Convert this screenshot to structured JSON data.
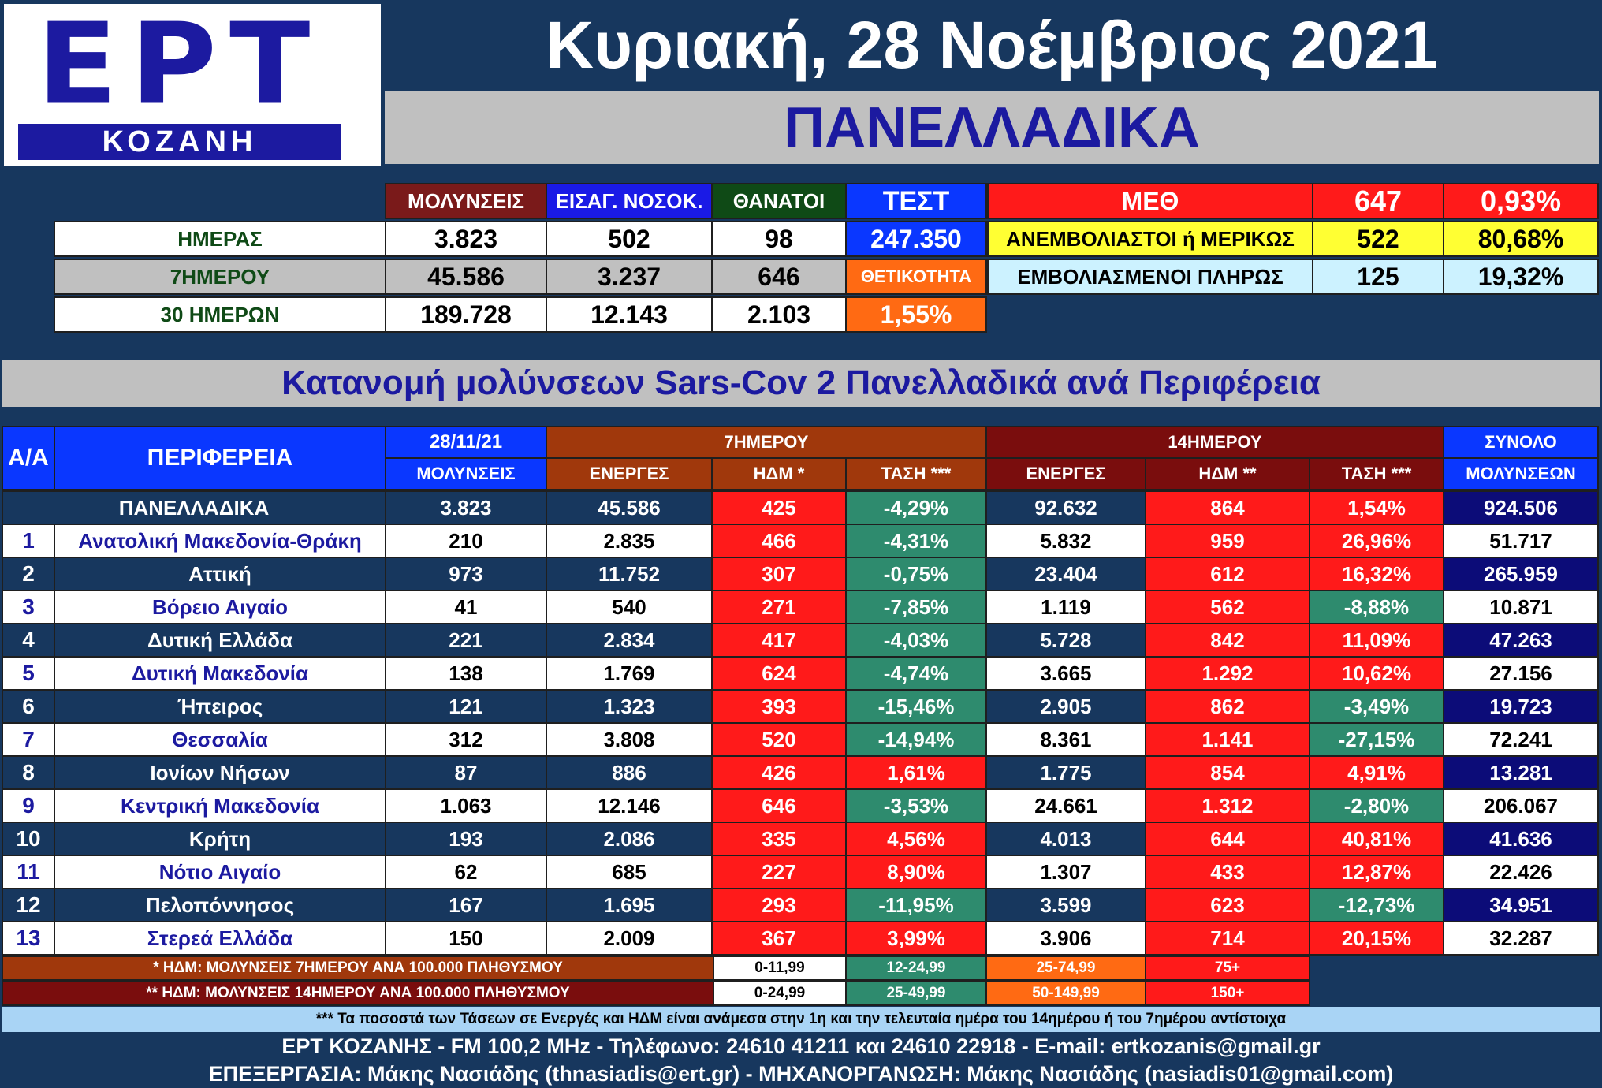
{
  "header": {
    "logo_main": "EPT",
    "logo_sub": "ΚΟΖΑΝΗ",
    "date": "Κυριακή, 28 Νοέμβριος 2021",
    "scope": "ΠΑΝΕΛΛΑΔΙΚΑ"
  },
  "summary": {
    "col_headers": [
      "ΜΟΛΥΝΣΕΙΣ",
      "ΕΙΣΑΓ. ΝΟΣΟΚ.",
      "ΘΑΝΑΤΟΙ",
      "ΤΕΣΤ"
    ],
    "rows": [
      {
        "label": "ΗΜΕΡΑΣ",
        "infections": "3.823",
        "hospital": "502",
        "deaths": "98"
      },
      {
        "label": "7ΗΜΕΡΟΥ",
        "infections": "45.586",
        "hospital": "3.237",
        "deaths": "646"
      },
      {
        "label": "30 ΗΜΕΡΩΝ",
        "infections": "189.728",
        "hospital": "12.143",
        "deaths": "2.103"
      }
    ],
    "tests_value": "247.350",
    "positivity_label": "ΘΕΤΙΚΟΤΗΤΑ",
    "positivity_value": "1,55%",
    "icu": {
      "label": "ΜΕΘ",
      "count": "647",
      "pct": "0,93%",
      "unvaccinated_label": "ΑΝΕΜΒΟΛΙΑΣΤΟΙ ή ΜΕΡΙΚΩΣ",
      "unvaccinated_count": "522",
      "unvaccinated_pct": "80,68%",
      "vaccinated_label": "ΕΜΒΟΛΙΑΣΜΕΝΟΙ ΠΛΗΡΩΣ",
      "vaccinated_count": "125",
      "vaccinated_pct": "19,32%"
    }
  },
  "section_title": "Κατανομή μολύνσεων Sars-Cov 2 Πανελλαδικά ανά Περιφέρεια",
  "table_headers": {
    "aa": "Α/Α",
    "region": "ΠΕΡΙΦΕΡΕΙΑ",
    "date": "28/11/21",
    "infections": "ΜΟΛΥΝΣΕΙΣ",
    "group7": "7ΗΜΕΡΟΥ",
    "group14": "14ΗΜΕΡΟΥ",
    "total_top": "ΣΥΝΟΛΟ",
    "total_bottom": "ΜΟΛΥΝΣΕΩΝ",
    "active7": "ΕΝΕΡΓΕΣ",
    "hdm7": "ΗΔΜ *",
    "trend7": "ΤΑΣΗ ***",
    "active14": "ΕΝΕΡΓΕΣ",
    "hdm14": "ΗΔΜ **",
    "trend14": "ΤΑΣΗ ***"
  },
  "total_row": {
    "region": "ΠΑΝΕΛΛΑΔΙΚΑ",
    "infections": "3.823",
    "active7": "45.586",
    "hdm7": "425",
    "trend7": "-4,29%",
    "active14": "92.632",
    "hdm14": "864",
    "trend14": "1,54%",
    "total": "924.506"
  },
  "regions": [
    {
      "aa": "1",
      "region": "Ανατολική Μακεδονία-Θράκη",
      "infections": "210",
      "active7": "2.835",
      "hdm7": "466",
      "trend7": "-4,31%",
      "active14": "5.832",
      "hdm14": "959",
      "trend14": "26,96%",
      "total": "51.717"
    },
    {
      "aa": "2",
      "region": "Αττική",
      "infections": "973",
      "active7": "11.752",
      "hdm7": "307",
      "trend7": "-0,75%",
      "active14": "23.404",
      "hdm14": "612",
      "trend14": "16,32%",
      "total": "265.959"
    },
    {
      "aa": "3",
      "region": "Βόρειο Αιγαίο",
      "infections": "41",
      "active7": "540",
      "hdm7": "271",
      "trend7": "-7,85%",
      "active14": "1.119",
      "hdm14": "562",
      "trend14": "-8,88%",
      "total": "10.871"
    },
    {
      "aa": "4",
      "region": "Δυτική Ελλάδα",
      "infections": "221",
      "active7": "2.834",
      "hdm7": "417",
      "trend7": "-4,03%",
      "active14": "5.728",
      "hdm14": "842",
      "trend14": "11,09%",
      "total": "47.263"
    },
    {
      "aa": "5",
      "region": "Δυτική Μακεδονία",
      "infections": "138",
      "active7": "1.769",
      "hdm7": "624",
      "trend7": "-4,74%",
      "active14": "3.665",
      "hdm14": "1.292",
      "trend14": "10,62%",
      "total": "27.156"
    },
    {
      "aa": "6",
      "region": "Ήπειρος",
      "infections": "121",
      "active7": "1.323",
      "hdm7": "393",
      "trend7": "-15,46%",
      "active14": "2.905",
      "hdm14": "862",
      "trend14": "-3,49%",
      "total": "19.723"
    },
    {
      "aa": "7",
      "region": "Θεσσαλία",
      "infections": "312",
      "active7": "3.808",
      "hdm7": "520",
      "trend7": "-14,94%",
      "active14": "8.361",
      "hdm14": "1.141",
      "trend14": "-27,15%",
      "total": "72.241"
    },
    {
      "aa": "8",
      "region": "Ιονίων Νήσων",
      "infections": "87",
      "active7": "886",
      "hdm7": "426",
      "trend7": "1,61%",
      "active14": "1.775",
      "hdm14": "854",
      "trend14": "4,91%",
      "total": "13.281"
    },
    {
      "aa": "9",
      "region": "Κεντρική Μακεδονία",
      "infections": "1.063",
      "active7": "12.146",
      "hdm7": "646",
      "trend7": "-3,53%",
      "active14": "24.661",
      "hdm14": "1.312",
      "trend14": "-2,80%",
      "total": "206.067"
    },
    {
      "aa": "10",
      "region": "Κρήτη",
      "infections": "193",
      "active7": "2.086",
      "hdm7": "335",
      "trend7": "4,56%",
      "active14": "4.013",
      "hdm14": "644",
      "trend14": "40,81%",
      "total": "41.636"
    },
    {
      "aa": "11",
      "region": "Νότιο Αιγαίο",
      "infections": "62",
      "active7": "685",
      "hdm7": "227",
      "trend7": "8,90%",
      "active14": "1.307",
      "hdm14": "433",
      "trend14": "12,87%",
      "total": "22.426"
    },
    {
      "aa": "12",
      "region": "Πελοπόννησος",
      "infections": "167",
      "active7": "1.695",
      "hdm7": "293",
      "trend7": "-11,95%",
      "active14": "3.599",
      "hdm14": "623",
      "trend14": "-12,73%",
      "total": "34.951"
    },
    {
      "aa": "13",
      "region": "Στερεά Ελλάδα",
      "infections": "150",
      "active7": "2.009",
      "hdm7": "367",
      "trend7": "3,99%",
      "active14": "3.906",
      "hdm14": "714",
      "trend14": "20,15%",
      "total": "32.287"
    }
  ],
  "legend": {
    "note1": "* ΗΔΜ: ΜΟΛΥΝΣΕΙΣ 7ΗΜΕΡΟΥ ΑΝΑ 100.000 ΠΛΗΘΥΣΜΟΥ",
    "note2": "** ΗΔΜ: ΜΟΛΥΝΣΕΙΣ 14ΗΜΕΡΟΥ ΑΝΑ 100.000 ΠΛΗΘΥΣΜΟΥ",
    "ranges7": [
      "0-11,99",
      "12-24,99",
      "25-74,99",
      "75+"
    ],
    "ranges14": [
      "0-24,99",
      "25-49,99",
      "50-149,99",
      "150+"
    ]
  },
  "footer": {
    "note3": "*** Τα ποσοστά των Τάσεων σε Ενεργές και ΗΔΜ είναι ανάμεσα στην 1η και την τελευταία ημέρα του 14ημέρου ή του 7ημέρου αντίστοιχα",
    "contact": "ΕΡΤ ΚΟΖΑΝΗΣ - FM 100,2 MHz - Τηλέφωνο:  24610 41211 και 24610 22918 - E-mail: ertkozanis@gmail.gr",
    "credits": "ΕΠΕΞΕΡΓΑΣΙΑ: Μάκης Νασιάδης (thnasiadis@ert.gr) - ΜΗΧΑΝΟΡΓΑΝΩΣΗ: Μάκης Νασιάδης (nasiadis01@gmail.com)"
  },
  "colors": {
    "navy": "#17375e",
    "red": "#ff1a1a",
    "green": "#2e8b6e",
    "white": "#ffffff",
    "dark_blue": "#0c0c78",
    "orange": "#ff6a13",
    "blue": "#0a37ff"
  }
}
